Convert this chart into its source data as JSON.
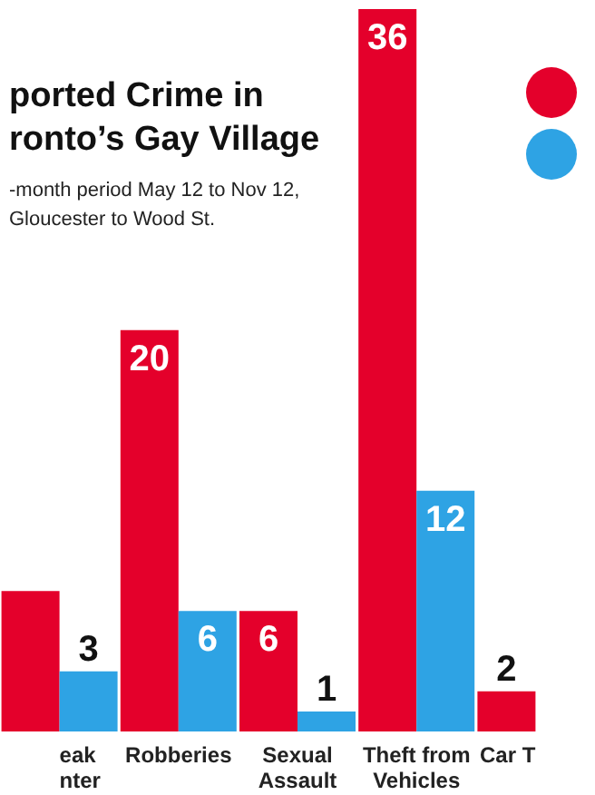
{
  "chart_data": {
    "type": "bar",
    "title": "ported Crime in\nronto’s Gay Village",
    "subtitle": "-month period May 12 to Nov 12,\nGloucester to Wood St.",
    "categories": [
      "eak\nnter",
      "Robberies",
      "Sexual\nAssault",
      "Theft from\nVehicles",
      "Car T"
    ],
    "series": [
      {
        "color": "#e4002b",
        "values": [
          7,
          20,
          6,
          36,
          2
        ],
        "value_labels": [
          null,
          "20",
          "6",
          "36",
          "2"
        ]
      },
      {
        "color": "#2ea3e4",
        "values": [
          3,
          6,
          1,
          12,
          null
        ],
        "value_labels": [
          "3",
          "6",
          "1",
          "12",
          null
        ]
      }
    ],
    "grid": false
  }
}
